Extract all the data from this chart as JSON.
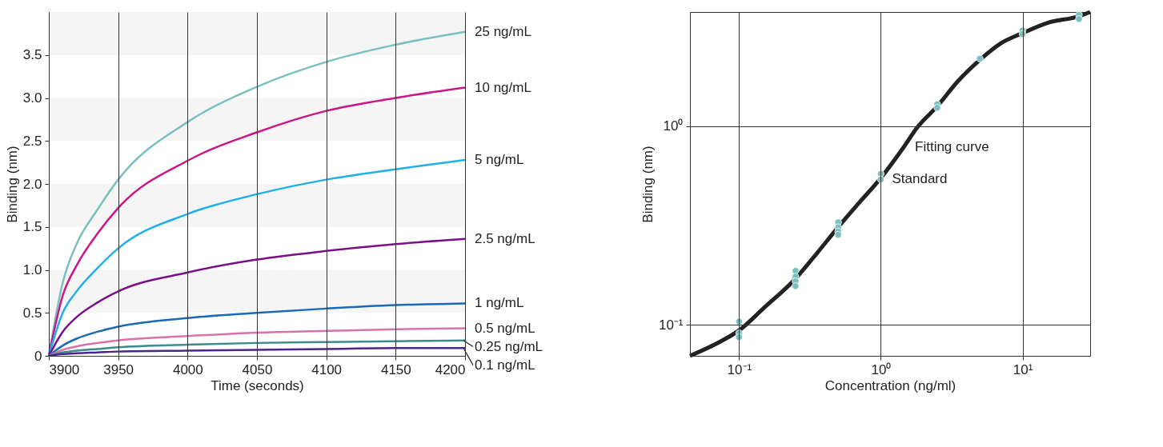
{
  "chart_data": [
    {
      "type": "line",
      "xlabel": "Time (seconds)",
      "ylabel": "Binding (nm)",
      "xlim": [
        3900,
        4200
      ],
      "ylim": [
        0,
        4.0
      ],
      "xticks": [
        3900,
        3950,
        4000,
        4050,
        4100,
        4150,
        4200
      ],
      "yticks": [
        0,
        0.5,
        {
          "value": 1.0,
          "label": "1.0"
        },
        1.5,
        {
          "value": 2.0,
          "label": "2.0"
        },
        2.5,
        {
          "value": 3.0,
          "label": "3.0"
        },
        3.5
      ],
      "grid": "x",
      "line_style": "solid",
      "marker": "none",
      "bands": [
        {
          "axis": "y",
          "from": 0.5,
          "to": 1.0,
          "color": "#f5f5f5"
        },
        {
          "axis": "y",
          "from": 1.5,
          "to": 2.0,
          "color": "#f5f5f5"
        },
        {
          "axis": "y",
          "from": 2.5,
          "to": 3.0,
          "color": "#f5f5f5"
        },
        {
          "axis": "y",
          "from": 3.5,
          "to": 4.0,
          "color": "#f5f5f5"
        }
      ],
      "x": [
        3900,
        3910,
        3920,
        3935,
        3950,
        4000,
        4050,
        4100,
        4150,
        4200
      ],
      "series": [
        {
          "name": "25 ng/mL",
          "color": "#7bbfbf",
          "values": [
            0,
            0.85,
            1.3,
            1.7,
            2.05,
            2.72,
            3.13,
            3.42,
            3.62,
            3.77
          ]
        },
        {
          "name": "10 ng/mL",
          "color": "#cc1587",
          "values": [
            0,
            0.7,
            1.05,
            1.42,
            1.72,
            2.27,
            2.6,
            2.85,
            3.0,
            3.12
          ]
        },
        {
          "name": "5 ng/mL",
          "color": "#1fb0e8",
          "values": [
            0,
            0.5,
            0.75,
            1.02,
            1.25,
            1.65,
            1.88,
            2.05,
            2.17,
            2.28
          ]
        },
        {
          "name": "2.5 ng/mL",
          "color": "#7b0f8a",
          "values": [
            0,
            0.28,
            0.45,
            0.62,
            0.75,
            0.97,
            1.12,
            1.22,
            1.3,
            1.36
          ]
        },
        {
          "name": "1 ng/mL",
          "color": "#1a6bb5",
          "values": [
            0,
            0.12,
            0.2,
            0.28,
            0.34,
            0.44,
            0.5,
            0.55,
            0.59,
            0.61
          ]
        },
        {
          "name": "0.5 ng/mL",
          "color": "#d872a8",
          "values": [
            0,
            0.07,
            0.11,
            0.15,
            0.18,
            0.23,
            0.27,
            0.29,
            0.31,
            0.32
          ]
        },
        {
          "name": "0.25 ng/mL",
          "color": "#3a8a8f",
          "values": [
            0,
            0.04,
            0.06,
            0.08,
            0.1,
            0.13,
            0.15,
            0.16,
            0.17,
            0.18
          ]
        },
        {
          "name": "0.1 ng/mL",
          "color": "#4a2590",
          "values": [
            0,
            0.02,
            0.03,
            0.04,
            0.05,
            0.06,
            0.07,
            0.08,
            0.09,
            0.09
          ]
        }
      ]
    },
    {
      "type": "line",
      "xlabel": "Concentration (ng/ml)",
      "ylabel": "Binding (nm)",
      "log": "xy",
      "xlim": [
        0.045,
        30
      ],
      "ylim": [
        0.07,
        3.74
      ],
      "xticks": [
        {
          "value": 0.1,
          "label": "10⁻¹"
        },
        {
          "value": 1,
          "label": "10⁰"
        },
        {
          "value": 10,
          "label": "10¹"
        }
      ],
      "yticks": [
        {
          "value": 0.1,
          "label": "10⁻¹"
        },
        {
          "value": 1,
          "label": "10⁰"
        }
      ],
      "grid": true,
      "series": [
        {
          "name": "Fitting curve",
          "type": "line",
          "color": "#222222",
          "x": [
            0.045,
            0.07,
            0.1,
            0.15,
            0.25,
            0.35,
            0.5,
            0.7,
            1,
            1.45,
            1.8,
            2.5,
            3.5,
            5,
            7,
            10,
            15,
            25,
            30
          ],
          "values": [
            0.07,
            0.081,
            0.094,
            0.122,
            0.171,
            0.227,
            0.31,
            0.41,
            0.548,
            0.783,
            0.98,
            1.256,
            1.68,
            2.15,
            2.6,
            2.93,
            3.3,
            3.56,
            3.74
          ]
        },
        {
          "name": "Standard",
          "type": "scatter",
          "marker": "circle",
          "color": "#7bbfbf",
          "x": [
            0.1,
            0.1,
            0.1,
            0.25,
            0.25,
            0.25,
            0.25,
            0.5,
            0.5,
            0.5,
            0.5,
            1,
            1,
            2.5,
            2.5,
            5,
            10,
            10,
            25,
            25
          ],
          "values": [
            0.104,
            0.091,
            0.087,
            0.187,
            0.175,
            0.166,
            0.157,
            0.328,
            0.31,
            0.295,
            0.284,
            0.575,
            0.539,
            1.287,
            1.235,
            2.18,
            3.02,
            2.9,
            3.62,
            3.45
          ]
        }
      ]
    }
  ]
}
